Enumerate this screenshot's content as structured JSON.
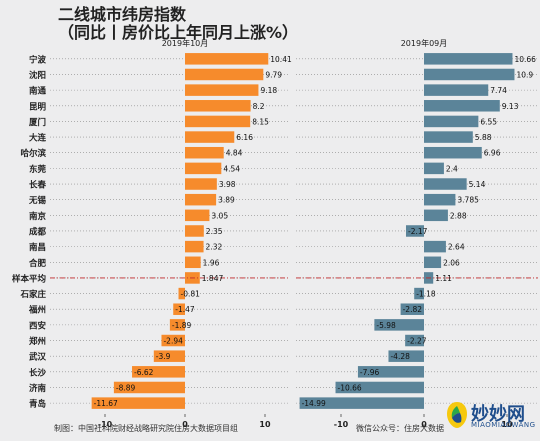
{
  "title_line1": "二线城市纬房指数",
  "title_line2": "（同比丨房价比上年同月上涨%）",
  "footer_left": "制图：中国社科院财经战略研究院住房大数据项目组",
  "footer_right": "微信公众号：住房大数据",
  "logo": {
    "text": "妙妙网",
    "sub": "MIAOMIAOWANG"
  },
  "colors": {
    "left_bar": "#f68b2c",
    "right_bar": "#5b8499",
    "average_line": "#c0282a",
    "background": "#ededee"
  },
  "chart_data": [
    {
      "type": "bar",
      "orientation": "horizontal",
      "title": "2019年10月",
      "categories": [
        "宁波",
        "沈阳",
        "南通",
        "昆明",
        "厦门",
        "大连",
        "哈尔滨",
        "东莞",
        "长春",
        "无锡",
        "南京",
        "成都",
        "南昌",
        "合肥",
        "样本平均",
        "石家庄",
        "福州",
        "西安",
        "郑州",
        "武汉",
        "长沙",
        "济南",
        "青岛"
      ],
      "values": [
        10.41,
        9.79,
        9.18,
        8.2,
        8.15,
        6.16,
        4.84,
        4.54,
        3.98,
        3.89,
        3.05,
        2.35,
        2.32,
        1.96,
        1.847,
        -0.81,
        -1.47,
        -1.89,
        -2.94,
        -3.9,
        -6.62,
        -8.89,
        -11.67
      ],
      "value_labels": [
        "10.41",
        "9.79",
        "9.18",
        "8.2",
        "8.15",
        "6.16",
        "4.84",
        "4.54",
        "3.98",
        "3.89",
        "3.05",
        "2.35",
        "2.32",
        "1.96",
        "1.847",
        "-0.81",
        "-1.47",
        "-1.89",
        "-2.94",
        "-3.9",
        "-6.62",
        "-8.89",
        "-11.67"
      ],
      "xlim": [
        -12.5,
        13
      ],
      "xticks": [
        -10,
        0,
        10
      ],
      "grid": true
    },
    {
      "type": "bar",
      "orientation": "horizontal",
      "title": "2019年09月",
      "categories": [
        "宁波",
        "沈阳",
        "南通",
        "昆明",
        "厦门",
        "大连",
        "哈尔滨",
        "东莞",
        "长春",
        "无锡",
        "南京",
        "成都",
        "南昌",
        "合肥",
        "样本平均",
        "石家庄",
        "福州",
        "西安",
        "郑州",
        "武汉",
        "长沙",
        "济南",
        "青岛"
      ],
      "values": [
        10.66,
        10.9,
        7.74,
        9.13,
        6.55,
        5.88,
        6.96,
        2.4,
        5.14,
        3.785,
        2.88,
        -2.17,
        2.64,
        2.06,
        1.11,
        -1.18,
        -2.82,
        -5.98,
        -2.27,
        -4.28,
        -7.96,
        -10.66,
        -14.99
      ],
      "value_labels": [
        "10.66",
        "10.9",
        "7.74",
        "9.13",
        "6.55",
        "5.88",
        "6.96",
        "2.4",
        "5.14",
        "3.785",
        "2.88",
        "-2.17",
        "2.64",
        "2.06",
        "1.11",
        "-1.18",
        "-2.82",
        "-5.98",
        "-2.27",
        "-4.28",
        "-7.96",
        "-10.66",
        "-14.99"
      ],
      "xlim": [
        -16,
        12
      ],
      "xticks": [
        -10,
        0,
        10
      ],
      "grid": true
    }
  ]
}
